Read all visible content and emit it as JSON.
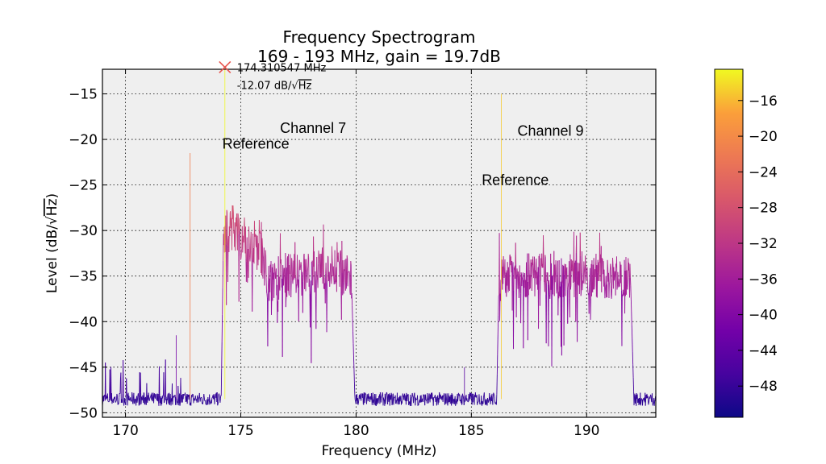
{
  "chart_data": {
    "type": "line",
    "title": "Frequency Spectrogram",
    "subtitle": "169 - 193 MHz, gain = 19.7dB",
    "xlabel": "Frequency (MHz)",
    "ylabel_prefix": "Level (dB/",
    "ylabel_radical": "√",
    "ylabel_unit": "Hz",
    "ylabel_suffix": ")",
    "xlim": [
      169,
      193
    ],
    "ylim": [
      -50.5,
      -12.3
    ],
    "xticks": [
      170,
      175,
      180,
      185,
      190
    ],
    "xtick_labels": [
      "170",
      "175",
      "180",
      "185",
      "190"
    ],
    "yticks": [
      -15,
      -20,
      -25,
      -30,
      -35,
      -40,
      -45,
      -50
    ],
    "ytick_labels": [
      "−15",
      "−20",
      "−25",
      "−30",
      "−35",
      "−40",
      "−45",
      "−50"
    ],
    "grid": true,
    "colormap": "plasma",
    "colorbar": {
      "range": [
        -51.5,
        -12.5
      ],
      "ticks": [
        -16,
        -20,
        -24,
        -28,
        -32,
        -36,
        -40,
        -44,
        -48
      ],
      "tick_labels": [
        "−16",
        "−20",
        "−24",
        "−28",
        "−32",
        "−36",
        "−40",
        "−44",
        "−48"
      ]
    },
    "noise_floor_db": -48.5,
    "bands": [
      {
        "name": "Channel 7",
        "start": 174.25,
        "end": 179.8,
        "segments": [
          [
            174.25,
            -30.0
          ],
          [
            175.8,
            -31.5
          ],
          [
            176.2,
            -35.5
          ],
          [
            179.0,
            -34.0
          ],
          [
            179.8,
            -35.5
          ]
        ]
      },
      {
        "name": "Channel 9",
        "start": 186.2,
        "end": 191.9,
        "segments": [
          [
            186.2,
            -35.0
          ],
          [
            191.9,
            -35.0
          ]
        ]
      }
    ],
    "spikes": [
      {
        "x": 172.8,
        "y": -21.5
      },
      {
        "x": 174.31,
        "y": -12.07
      },
      {
        "x": 186.3,
        "y": -15.0
      },
      {
        "x": 172.2,
        "y": -41.5
      },
      {
        "x": 184.7,
        "y": -45.0
      }
    ],
    "annotations": [
      {
        "text": "Channel 7",
        "x": 176.7,
        "y": -19.3
      },
      {
        "text": "Reference",
        "x": 174.2,
        "y": -21.0
      },
      {
        "text": "Channel 9",
        "x": 187.0,
        "y": -19.6
      },
      {
        "text": "Reference",
        "x": 185.45,
        "y": -25.0
      }
    ],
    "peak_marker": {
      "x": 174.310547,
      "y": -12.07,
      "freq_label": "174.310547 MHz",
      "level_value": "-12.07",
      "level_unit_prefix": "dB/",
      "level_unit_radical": "√",
      "level_unit_suffix": "Hz"
    }
  }
}
